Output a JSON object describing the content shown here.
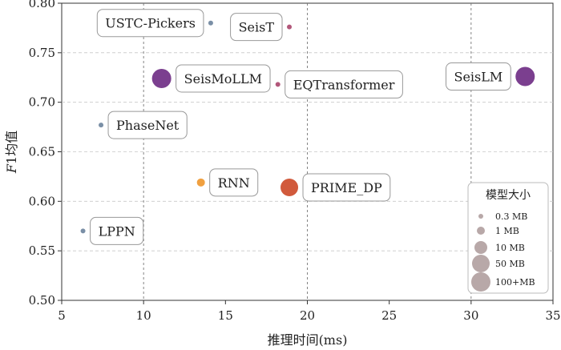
{
  "chart_data": {
    "type": "scatter",
    "title": "",
    "xlabel": "推理时间(ms)",
    "ylabel_italic": "F",
    "ylabel_rest": "1均值",
    "xlim": [
      5,
      35
    ],
    "ylim": [
      0.5,
      0.8
    ],
    "xticks": [
      5,
      10,
      15,
      20,
      25,
      30,
      35
    ],
    "xtick_labels": [
      "5",
      "10",
      "15",
      "20",
      "25",
      "30",
      "35"
    ],
    "yticks": [
      0.5,
      0.55,
      0.6,
      0.65,
      0.7,
      0.75,
      0.8
    ],
    "ytick_labels": [
      "0.50",
      "0.55",
      "0.60",
      "0.65",
      "0.70",
      "0.75",
      "0.80"
    ],
    "grid": "dashed vertical lines at x=10,20,30; horizontal dashed lines at each y tick",
    "points": [
      {
        "label": "USTC-Pickers",
        "x": 14.1,
        "y": 0.78,
        "size_class": "0.3 MB",
        "color": "#7a8fa6"
      },
      {
        "label": "SeisT",
        "x": 18.9,
        "y": 0.776,
        "size_class": "0.3 MB",
        "color": "#b2577a"
      },
      {
        "label": "SeisLM",
        "x": 33.3,
        "y": 0.726,
        "size_class": "100+MB",
        "color": "#7b3f8f"
      },
      {
        "label": "SeisMoLLM",
        "x": 11.1,
        "y": 0.724,
        "size_class": "100+MB",
        "color": "#7b3f8f"
      },
      {
        "label": "EQTransformer",
        "x": 18.2,
        "y": 0.718,
        "size_class": "0.3 MB",
        "color": "#b2577a"
      },
      {
        "label": "PhaseNet",
        "x": 7.4,
        "y": 0.677,
        "size_class": "0.3 MB",
        "color": "#7a8fa6"
      },
      {
        "label": "RNN",
        "x": 13.5,
        "y": 0.619,
        "size_class": "1 MB",
        "color": "#f0a040"
      },
      {
        "label": "PRIME_DP",
        "x": 18.9,
        "y": 0.614,
        "size_class": "50 MB",
        "color": "#d15a3c"
      },
      {
        "label": "LPPN",
        "x": 6.3,
        "y": 0.57,
        "size_class": "0.3 MB",
        "color": "#7a8fa6"
      }
    ],
    "legend": {
      "title": "模型大小",
      "position": "bottom-right",
      "entries": [
        "0.3 MB",
        "1 MB",
        "10 MB",
        "50 MB",
        "100+MB"
      ],
      "color": "#b8a8a8"
    }
  }
}
